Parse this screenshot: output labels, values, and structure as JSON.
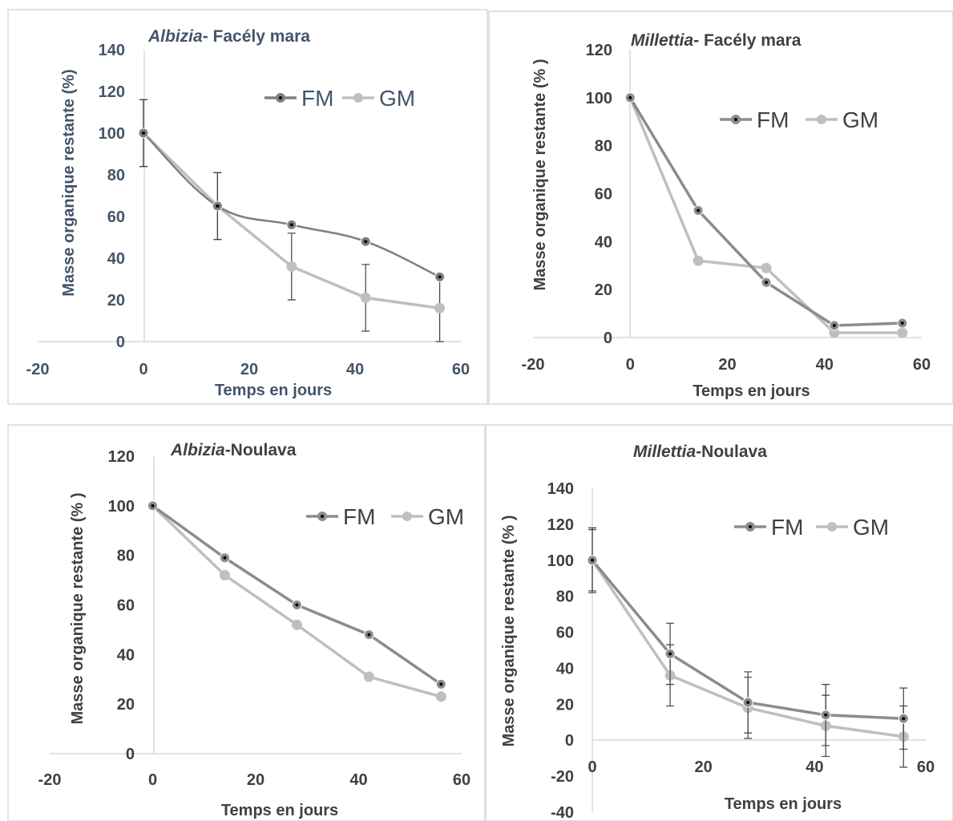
{
  "chart_data": [
    {
      "type": "line",
      "title_italic": "Albizia",
      "title_rest": "- Facély mara",
      "xlabel": "Temps en jours",
      "ylabel": "Masse organique restante (%)",
      "xlim": [
        -20,
        60
      ],
      "ylim": [
        0,
        140
      ],
      "x_ticks": [
        "-20",
        "0",
        "20",
        "40",
        "60"
      ],
      "y_ticks": [
        "0",
        "20",
        "40",
        "60",
        "80",
        "100",
        "120",
        "140"
      ],
      "x": [
        0,
        14,
        28,
        42,
        56
      ],
      "series": [
        {
          "name": "FM",
          "values": [
            100,
            65,
            56,
            48,
            31
          ],
          "errors": [
            16,
            16,
            0,
            0,
            0
          ],
          "color": "#7f7f7f",
          "smooth": true
        },
        {
          "name": "GM",
          "values": [
            100,
            65,
            36,
            21,
            16
          ],
          "errors": [
            16,
            16,
            16,
            16,
            16
          ],
          "color": "#bfbfbf",
          "smooth": false
        }
      ],
      "legend_position": "top-right"
    },
    {
      "type": "line",
      "title_italic": "Millettia",
      "title_rest": "- Facély mara",
      "xlabel": "Temps en jours",
      "ylabel": "Masse organique restante (% )",
      "xlim": [
        -20,
        60
      ],
      "ylim": [
        0,
        120
      ],
      "x_ticks": [
        "-20",
        "0",
        "20",
        "40",
        "60"
      ],
      "y_ticks": [
        "0",
        "20",
        "40",
        "60",
        "80",
        "100",
        "120"
      ],
      "x": [
        0,
        14,
        28,
        42,
        56
      ],
      "series": [
        {
          "name": "FM",
          "values": [
            100,
            53,
            23,
            5,
            6
          ],
          "errors": [
            0,
            0,
            0,
            0,
            0
          ],
          "color": "#8c8c8c",
          "smooth": false
        },
        {
          "name": "GM",
          "values": [
            100,
            32,
            29,
            2,
            2
          ],
          "errors": [
            0,
            0,
            0,
            0,
            0
          ],
          "color": "#bfbfbf",
          "smooth": false
        }
      ],
      "legend_position": "top-right"
    },
    {
      "type": "line",
      "title_italic": "Albizia",
      "title_rest": "-Noulava",
      "xlabel": "Temps en jours",
      "ylabel": "Masse organique restante (% )",
      "xlim": [
        -20,
        60
      ],
      "ylim": [
        0,
        120
      ],
      "x_ticks": [
        "-20",
        "0",
        "20",
        "40",
        "60"
      ],
      "y_ticks": [
        "0",
        "20",
        "40",
        "60",
        "80",
        "100",
        "120"
      ],
      "x": [
        0,
        14,
        28,
        42,
        56
      ],
      "series": [
        {
          "name": "FM",
          "values": [
            100,
            79,
            60,
            48,
            28
          ],
          "errors": [
            0,
            0,
            0,
            0,
            0
          ],
          "color": "#8c8c8c",
          "smooth": false
        },
        {
          "name": "GM",
          "values": [
            100,
            72,
            52,
            31,
            23
          ],
          "errors": [
            0,
            0,
            0,
            0,
            0
          ],
          "color": "#bfbfbf",
          "smooth": false
        }
      ],
      "legend_position": "top-right"
    },
    {
      "type": "line",
      "title_italic": "Millettia",
      "title_rest": "-Noulava",
      "xlabel": "Temps en jours",
      "ylabel": "Masse organique restante (% )",
      "xlim": [
        0,
        60
      ],
      "ylim": [
        -40,
        140
      ],
      "x_ticks": [
        "0",
        "20",
        "40",
        "60"
      ],
      "y_ticks": [
        "-40",
        "-20",
        "0",
        "20",
        "40",
        "60",
        "80",
        "100",
        "120",
        "140"
      ],
      "x": [
        0,
        14,
        28,
        42,
        56
      ],
      "series": [
        {
          "name": "FM",
          "values": [
            100,
            48,
            21,
            14,
            12
          ],
          "errors": [
            18,
            17,
            17,
            17,
            17
          ],
          "color": "#8c8c8c",
          "smooth": false
        },
        {
          "name": "GM",
          "values": [
            100,
            36,
            18,
            8,
            2
          ],
          "errors": [
            17,
            17,
            17,
            17,
            17
          ],
          "color": "#bfbfbf",
          "smooth": false
        }
      ],
      "legend_position": "top-right"
    }
  ]
}
